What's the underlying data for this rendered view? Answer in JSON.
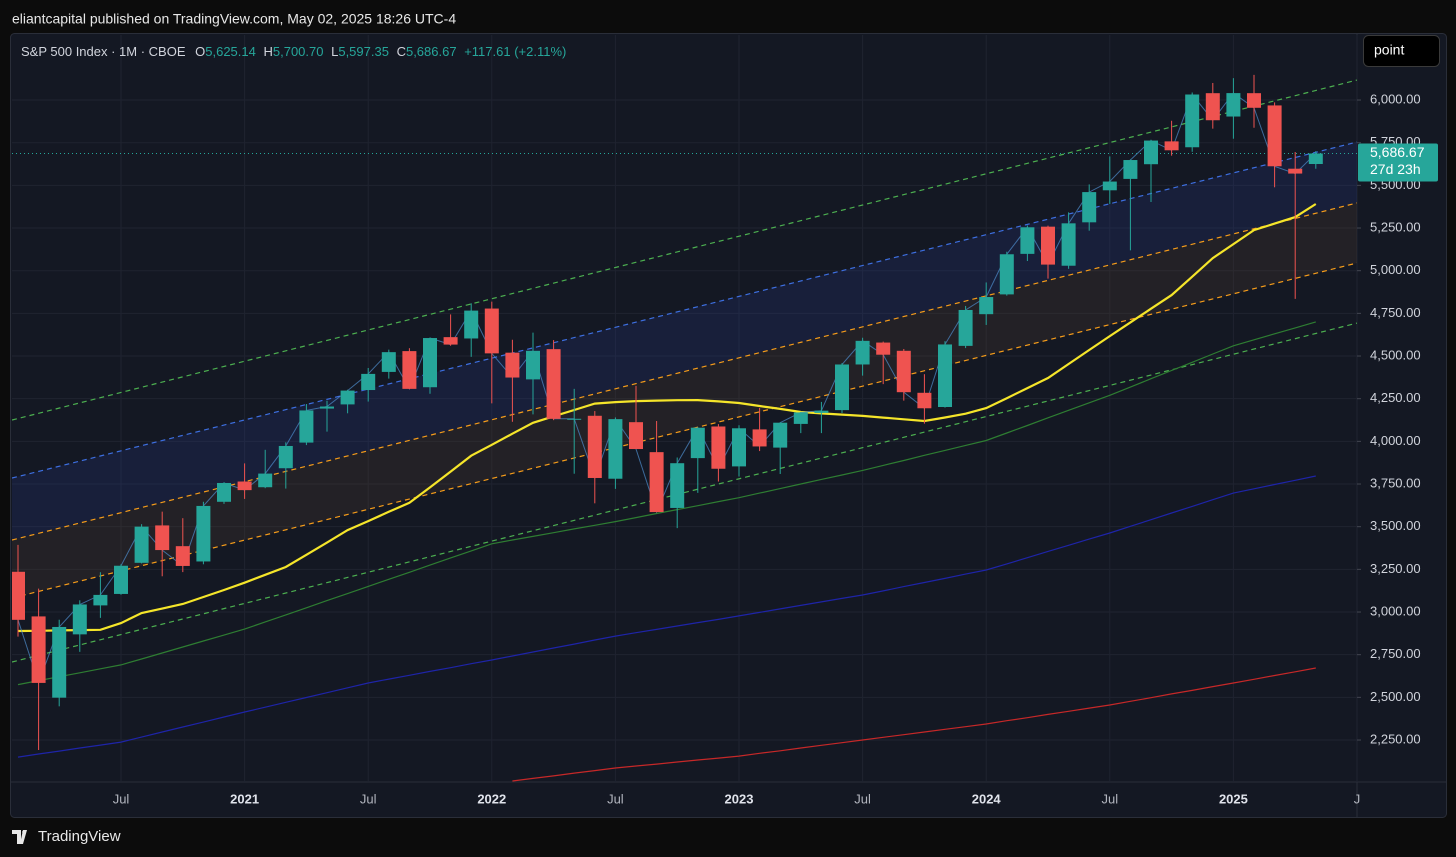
{
  "header": {
    "text": "eliantcapital published on TradingView.com, May 02, 2025 18:26 UTC-4"
  },
  "footer": {
    "brand": "TradingView"
  },
  "toolbar": {
    "button": "point"
  },
  "chart_data": {
    "type": "candlestick",
    "title": "S&P 500 Index · 1M · CBOE",
    "legend": {
      "open": {
        "label": "O",
        "text": "5,625.14"
      },
      "high": {
        "label": "H",
        "text": "5,700.70"
      },
      "low": {
        "label": "L",
        "text": "5,597.35"
      },
      "close": {
        "label": "C",
        "text": "5,686.67"
      },
      "change": "+117.61 (+2.11%)"
    },
    "categories": [
      null,
      null,
      null,
      null,
      null,
      "Jul",
      null,
      null,
      null,
      null,
      null,
      "2021",
      null,
      null,
      null,
      null,
      null,
      "Jul",
      null,
      null,
      null,
      null,
      null,
      "2022",
      null,
      null,
      null,
      null,
      null,
      "Jul",
      null,
      null,
      null,
      null,
      null,
      "2023",
      null,
      null,
      null,
      null,
      null,
      "Jul",
      null,
      null,
      null,
      null,
      null,
      "2024",
      null,
      null,
      null,
      null,
      null,
      "Jul",
      null,
      null,
      null,
      null,
      null,
      "2025",
      null,
      null,
      null,
      null,
      null,
      "J"
    ],
    "open": [
      3235.66,
      2974.28,
      2498.08,
      2869.09,
      3038.78,
      3105.92,
      3288.26,
      3507.44,
      3385.87,
      3296.2,
      3645.87,
      3764.61,
      3731.17,
      3842.51,
      3992.78,
      4191.98,
      4216.52,
      4300.73,
      4406.86,
      4528.8,
      4317.16,
      4610.62,
      4602.82,
      4778.14,
      4519.57,
      4363.14,
      4540.32,
      4130.61,
      4149.78,
      3781.0,
      4112.38,
      3936.73,
      3609.78,
      3901.79,
      4087.14,
      3853.29,
      4070.07,
      3963.34,
      4102.2,
      4166.79,
      4183.03,
      4450.48,
      4578.83,
      4530.6,
      4284.52,
      4201.27,
      4559.43,
      4745.2,
      4861.11,
      5098.51,
      5257.97,
      5029.03,
      5283.4,
      5471.08,
      5537.84,
      5623.89,
      5757.73,
      5723.22,
      6040.11,
      5903.26,
      6040.11,
      5968.33,
      5597.53,
      5625.14,
      null,
      null
    ],
    "high": [
      3393.52,
      3136.72,
      2954.86,
      3068.67,
      3233.13,
      3279.99,
      3514.77,
      3588.11,
      3549.85,
      3645.99,
      3760.2,
      3870.9,
      3950.43,
      3994.41,
      4218.78,
      4238.04,
      4302.43,
      4429.97,
      4537.36,
      4545.85,
      4608.08,
      4743.83,
      4808.93,
      4818.62,
      4595.31,
      4637.3,
      4593.45,
      4307.66,
      4177.51,
      4140.15,
      4325.28,
      4119.28,
      3905.42,
      4080.11,
      4100.96,
      4094.21,
      4195.44,
      4110.75,
      4170.06,
      4231.1,
      4458.48,
      4607.07,
      4584.62,
      4541.25,
      4393.57,
      4587.64,
      4793.3,
      4931.09,
      5111.06,
      5264.85,
      5263.95,
      5341.88,
      5505.53,
      5669.67,
      5651.62,
      5767.37,
      5878.46,
      6044.17,
      6099.97,
      6128.18,
      6147.43,
      5986.09,
      5695.31,
      5700.7,
      null,
      null
    ],
    "low": [
      2855.84,
      2191.86,
      2447.49,
      2766.64,
      2965.66,
      3101.17,
      3284.53,
      3209.45,
      3233.94,
      3279.74,
      3633.4,
      3662.71,
      3725.62,
      3723.34,
      3978.19,
      4056.88,
      4164.4,
      4233.13,
      4367.73,
      4305.91,
      4278.94,
      4560.0,
      4495.12,
      4222.62,
      4114.65,
      4157.87,
      4124.28,
      3810.32,
      3636.87,
      3721.56,
      3954.53,
      3584.13,
      3491.58,
      3698.15,
      3764.49,
      3794.33,
      3943.08,
      3808.86,
      4048.28,
      4048.28,
      4166.15,
      4385.05,
      4335.31,
      4238.63,
      4103.78,
      4197.74,
      4546.5,
      4682.11,
      4853.84,
      5056.82,
      4953.56,
      5011.05,
      5234.32,
      5390.95,
      5119.26,
      5402.62,
      5674.0,
      5696.51,
      5832.3,
      5773.31,
      5837.66,
      5488.73,
      4835.04,
      5597.35,
      null,
      null
    ],
    "close": [
      2954.22,
      2584.59,
      2912.43,
      3044.31,
      3100.29,
      3271.12,
      3500.31,
      3363.0,
      3269.96,
      3621.63,
      3756.07,
      3714.24,
      3811.15,
      3972.89,
      4181.17,
      4204.11,
      4297.5,
      4395.26,
      4522.68,
      4307.54,
      4605.38,
      4567.0,
      4766.18,
      4515.55,
      4373.94,
      4530.41,
      4131.93,
      4132.15,
      3785.38,
      4130.29,
      3955.0,
      3585.62,
      3871.98,
      4080.11,
      3839.5,
      4076.6,
      3970.15,
      4109.31,
      4169.48,
      4179.83,
      4450.38,
      4588.96,
      4507.66,
      4288.05,
      4193.8,
      4567.8,
      4769.83,
      4845.65,
      5096.27,
      5254.35,
      5035.69,
      5277.51,
      5460.48,
      5522.3,
      5648.4,
      5762.48,
      5705.45,
      6032.38,
      5881.63,
      6040.53,
      5954.5,
      5611.85,
      5569.06,
      5686.67,
      null,
      null
    ],
    "up_color": "#26a69a",
    "down_color": "#ef5350",
    "close_line_color": "#4f8fcf",
    "lines": [
      {
        "color": "#2e7d32",
        "values": [
          2575,
          2598,
          2621,
          2644,
          2667,
          2690,
          2725,
          2760,
          2795,
          2830,
          2865,
          2900,
          2942,
          2983,
          3025,
          3067,
          3108,
          3150,
          3192,
          3233,
          3275,
          3317,
          3358,
          3400,
          3422,
          3443,
          3465,
          3487,
          3508,
          3530,
          3553,
          3577,
          3600,
          3623,
          3647,
          3670,
          3697,
          3723,
          3750,
          3777,
          3803,
          3830,
          3859,
          3888,
          3918,
          3947,
          3976,
          4005,
          4049,
          4093,
          4138,
          4182,
          4226,
          4270,
          4318,
          4367,
          4415,
          4463,
          4512,
          4560,
          4595,
          4630,
          4665,
          4700,
          null,
          null
        ]
      },
      {
        "color": "#1e24a8",
        "values": [
          2150,
          2168,
          2185,
          2203,
          2220,
          2238,
          2267,
          2297,
          2326,
          2355,
          2385,
          2414,
          2442,
          2471,
          2499,
          2527,
          2556,
          2584,
          2607,
          2629,
          2652,
          2674,
          2697,
          2719,
          2742,
          2766,
          2789,
          2812,
          2836,
          2859,
          2879,
          2898,
          2918,
          2938,
          2957,
          2977,
          2998,
          3018,
          3039,
          3059,
          3080,
          3100,
          3124,
          3149,
          3173,
          3197,
          3222,
          3246,
          3282,
          3318,
          3355,
          3391,
          3427,
          3463,
          3502,
          3541,
          3580,
          3619,
          3658,
          3697,
          3722,
          3747,
          3772,
          3797,
          null,
          null
        ]
      },
      {
        "color": "#c62828",
        "values": [
          null,
          null,
          null,
          null,
          null,
          null,
          null,
          null,
          null,
          null,
          null,
          null,
          null,
          null,
          null,
          null,
          null,
          null,
          null,
          null,
          null,
          null,
          null,
          null,
          2010,
          2025,
          2040,
          2056,
          2071,
          2086,
          2098,
          2109,
          2121,
          2133,
          2144,
          2156,
          2172,
          2187,
          2203,
          2219,
          2234,
          2250,
          2266,
          2281,
          2297,
          2313,
          2328,
          2344,
          2363,
          2381,
          2400,
          2418,
          2437,
          2455,
          2477,
          2498,
          2520,
          2541,
          2563,
          2584,
          2606,
          2628,
          2650,
          2672,
          null,
          null
        ]
      },
      {
        "color": "#f5e52a",
        "values": [
          2889,
          2890,
          2892,
          2894,
          2896,
          2935,
          2994,
          3020,
          3047,
          3088,
          3129,
          3172,
          3218,
          3264,
          3335,
          3407,
          3480,
          3533,
          3587,
          3640,
          3730,
          3823,
          3916,
          3980,
          4045,
          4109,
          4147,
          4184,
          4221,
          4230,
          4236,
          4239,
          4241,
          4242,
          4234,
          4225,
          4207,
          4190,
          4172,
          4164,
          4157,
          4149,
          4139,
          4129,
          4119,
          4140,
          4162,
          4195,
          4253,
          4312,
          4371,
          4453,
          4535,
          4617,
          4697,
          4777,
          4857,
          4965,
          5074,
          5156,
          5238,
          5276,
          5314,
          5391,
          null,
          null
        ]
      }
    ],
    "channel": [
      {
        "color": "#4caf50",
        "values": [
          4125,
          6117
        ]
      },
      {
        "color": "#3d6fe0",
        "values": [
          3785,
          5754
        ]
      },
      {
        "color": "#f59c1a",
        "values": [
          3422,
          5397
        ]
      },
      {
        "color": "#f59c1a",
        "values": [
          3082,
          5045
        ]
      },
      {
        "color": "#4caf50",
        "values": [
          2707,
          4693
        ]
      }
    ],
    "channel_fills": [
      "rgba(40,60,140,0.22)",
      "rgba(90,70,50,0.22)"
    ],
    "last_price": {
      "value": 5686.67,
      "label": "5,686.67",
      "color": "#26a69a"
    },
    "countdown": "27d 23h",
    "ylim": [
      2004,
      6381
    ],
    "yticks": [
      {
        "value": 2250,
        "label": "2,250.00"
      },
      {
        "value": 2500,
        "label": "2,500.00"
      },
      {
        "value": 2750,
        "label": "2,750.00"
      },
      {
        "value": 3000,
        "label": "3,000.00"
      },
      {
        "value": 3250,
        "label": "3,250.00"
      },
      {
        "value": 3500,
        "label": "3,500.00"
      },
      {
        "value": 3750,
        "label": "3,750.00"
      },
      {
        "value": 4000,
        "label": "4,000.00"
      },
      {
        "value": 4250,
        "label": "4,250.00"
      },
      {
        "value": 4500,
        "label": "4,500.00"
      },
      {
        "value": 4750,
        "label": "4,750.00"
      },
      {
        "value": 5000,
        "label": "5,000.00"
      },
      {
        "value": 5250,
        "label": "5,250.00"
      },
      {
        "value": 5500,
        "label": "5,500.00"
      },
      {
        "value": 5750,
        "label": "5,750.00"
      },
      {
        "value": 6000,
        "label": "6,000.00"
      }
    ],
    "grid": true
  }
}
